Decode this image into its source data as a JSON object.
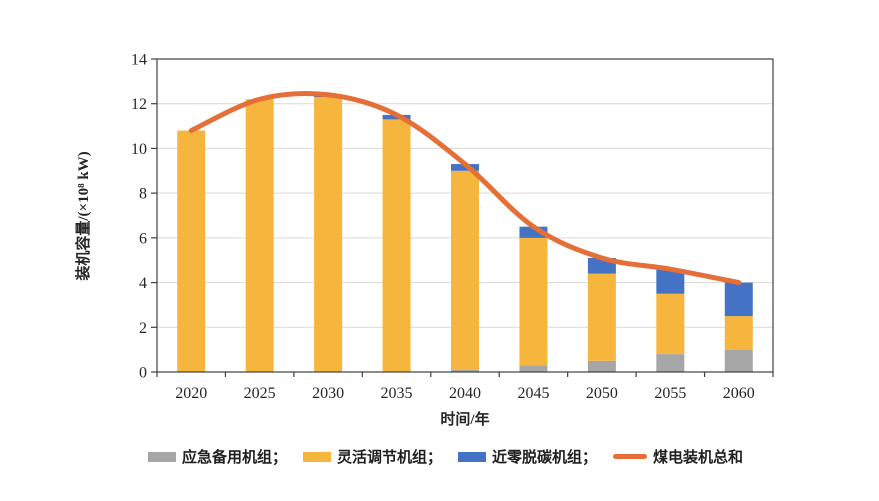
{
  "chart_data": {
    "type": "bar",
    "subtype": "stacked-bars-with-line-overlay",
    "categories": [
      "2020",
      "2025",
      "2030",
      "2035",
      "2040",
      "2045",
      "2050",
      "2055",
      "2060"
    ],
    "series": [
      {
        "name": "应急备用机组",
        "type": "bar",
        "color": "#A6A6A6",
        "values": [
          0,
          0,
          0,
          0,
          0.1,
          0.3,
          0.5,
          0.8,
          1.0
        ]
      },
      {
        "name": "灵活调节机组",
        "type": "bar",
        "color": "#F6B53D",
        "values": [
          10.8,
          12.2,
          12.3,
          11.3,
          8.9,
          5.7,
          3.9,
          2.7,
          1.5
        ]
      },
      {
        "name": "近零脱碳机组",
        "type": "bar",
        "color": "#4472C4",
        "values": [
          0,
          0,
          0.1,
          0.2,
          0.3,
          0.5,
          0.7,
          1.1,
          1.5
        ]
      },
      {
        "name": "煤电装机总和",
        "type": "line",
        "color": "#E56F38",
        "values": [
          10.8,
          12.2,
          12.4,
          11.5,
          9.3,
          6.5,
          5.1,
          4.6,
          4.0
        ]
      }
    ],
    "title": "",
    "xlabel": "时间/年",
    "ylabel": "装机容量/(×10⁸ kW)",
    "ylim": [
      0,
      14
    ],
    "yticks": [
      0,
      2,
      4,
      6,
      8,
      10,
      12,
      14
    ],
    "grid": true,
    "grid_color": "#D9D9D9",
    "axis_color": "#3F3F3F",
    "legend_position": "bottom"
  },
  "legend": {
    "items": [
      {
        "label": "应急备用机组；",
        "swatch": "rect",
        "color": "#A6A6A6"
      },
      {
        "label": "灵活调节机组；",
        "swatch": "rect",
        "color": "#F6B53D"
      },
      {
        "label": "近零脱碳机组；",
        "swatch": "rect",
        "color": "#4472C4"
      },
      {
        "label": "煤电装机总和",
        "swatch": "line",
        "color": "#E56F38"
      }
    ]
  }
}
